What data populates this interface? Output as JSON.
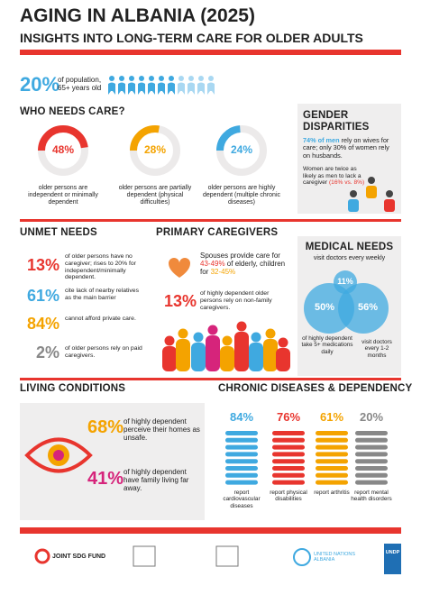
{
  "header": {
    "title": "AGING IN ALBANIA (2025)",
    "subtitle": "INSIGHTS INTO LONG-TERM CARE FOR OLDER ADULTS"
  },
  "population": {
    "value": "20%",
    "text": "of population, 65+ years old"
  },
  "who_needs_care": {
    "title": "WHO NEEDS CARE?",
    "gauges": [
      {
        "value": 48,
        "label": "48%",
        "text": "older persons are independent or minimally dependent",
        "color": "#e8352e"
      },
      {
        "value": 28,
        "label": "28%",
        "text": "older persons are partially dependent (physical difficulties)",
        "color": "#f4a300"
      },
      {
        "value": 24,
        "label": "24%",
        "text": "older persons are highly dependent (multiple chronic diseases)",
        "color": "#3fa9e0"
      }
    ]
  },
  "gender": {
    "title": "GENDER DISPARITIES",
    "highlight": "74% of men",
    "text": " rely on wives for care; only 30% of women rely on husbands.",
    "note": "Women are twice as likely as men to lack a caregiver",
    "note_highlight": "(16% vs. 8%)"
  },
  "unmet_needs": {
    "title": "UNMET NEEDS",
    "items": [
      {
        "value": "13%",
        "text": "of older persons have no caregiver; rises to 20% for independent/minimally dependent."
      },
      {
        "value": "61%",
        "text": "cite lack of nearby relatives as the main barrier"
      },
      {
        "value": "84%",
        "text": "cannot afford private care."
      },
      {
        "value": "2%",
        "text": "of older persons rely on paid caregivers."
      }
    ]
  },
  "primary_caregivers": {
    "title": "PRIMARY CAREGIVERS",
    "parts": [
      "Spouses provide care for ",
      "43-49%",
      " of elderly, children for ",
      "32-45%"
    ],
    "stat": "13%",
    "stat_text": "of highly dependent older persons rely on non-family caregivers."
  },
  "medical_needs": {
    "title": "MEDICAL NEEDS",
    "top_text": "visit doctors every weekly",
    "weekly": "11%",
    "meds": "50%",
    "monthly": "56%",
    "meds_text": "of highly dependent take 5+ medications daily",
    "monthly_text": "visit doctors every 1-2 months"
  },
  "living_conditions": {
    "title": "LIVING CONDITIONS",
    "items": [
      {
        "value": "68%",
        "text": "of highly dependent perceive their homes as unsafe."
      },
      {
        "value": "41%",
        "text": "of highly dependent have family living far away."
      }
    ]
  },
  "chronic": {
    "title": "CHRONIC DISEASES & DEPENDENCY",
    "items": [
      {
        "value": "84%",
        "text": "report cardiovascular diseases"
      },
      {
        "value": "76%",
        "text": "report physical disabilities"
      },
      {
        "value": "61%",
        "text": "report arthritis"
      },
      {
        "value": "20%",
        "text": "report mental health disorders"
      }
    ]
  },
  "footer": {
    "logos": [
      "JOINT SDG FUND",
      "UNITED NATIONS ALBANIA",
      "UNDP"
    ]
  }
}
